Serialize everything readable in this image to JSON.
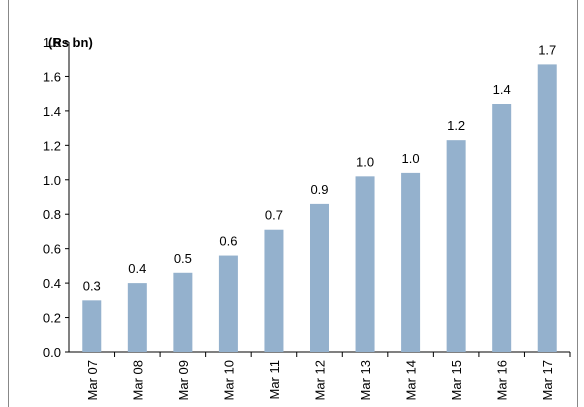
{
  "chart_data": {
    "type": "bar",
    "ylabel": "(Rs bn)",
    "categories": [
      "Mar 07",
      "Mar 08",
      "Mar 09",
      "Mar 10",
      "Mar 11",
      "Mar 12",
      "Mar 13",
      "Mar 14",
      "Mar 15",
      "Mar 16",
      "Mar 17"
    ],
    "values": [
      0.3,
      0.4,
      0.46,
      0.56,
      0.71,
      0.86,
      1.02,
      1.04,
      1.23,
      1.44,
      1.67
    ],
    "value_labels": [
      "0.3",
      "0.4",
      "0.5",
      "0.6",
      "0.7",
      "0.9",
      "1.0",
      "1.0",
      "1.2",
      "1.4",
      "1.7"
    ],
    "color": "#94b1cd",
    "ylim": [
      0,
      1.8
    ],
    "yticks": [
      {
        "value": 0,
        "label": "0.0"
      },
      0.2,
      0.4,
      0.6,
      0.8,
      {
        "value": 1,
        "label": "1.0"
      },
      1.2,
      1.4,
      1.6,
      1.8
    ],
    "grid": false
  }
}
